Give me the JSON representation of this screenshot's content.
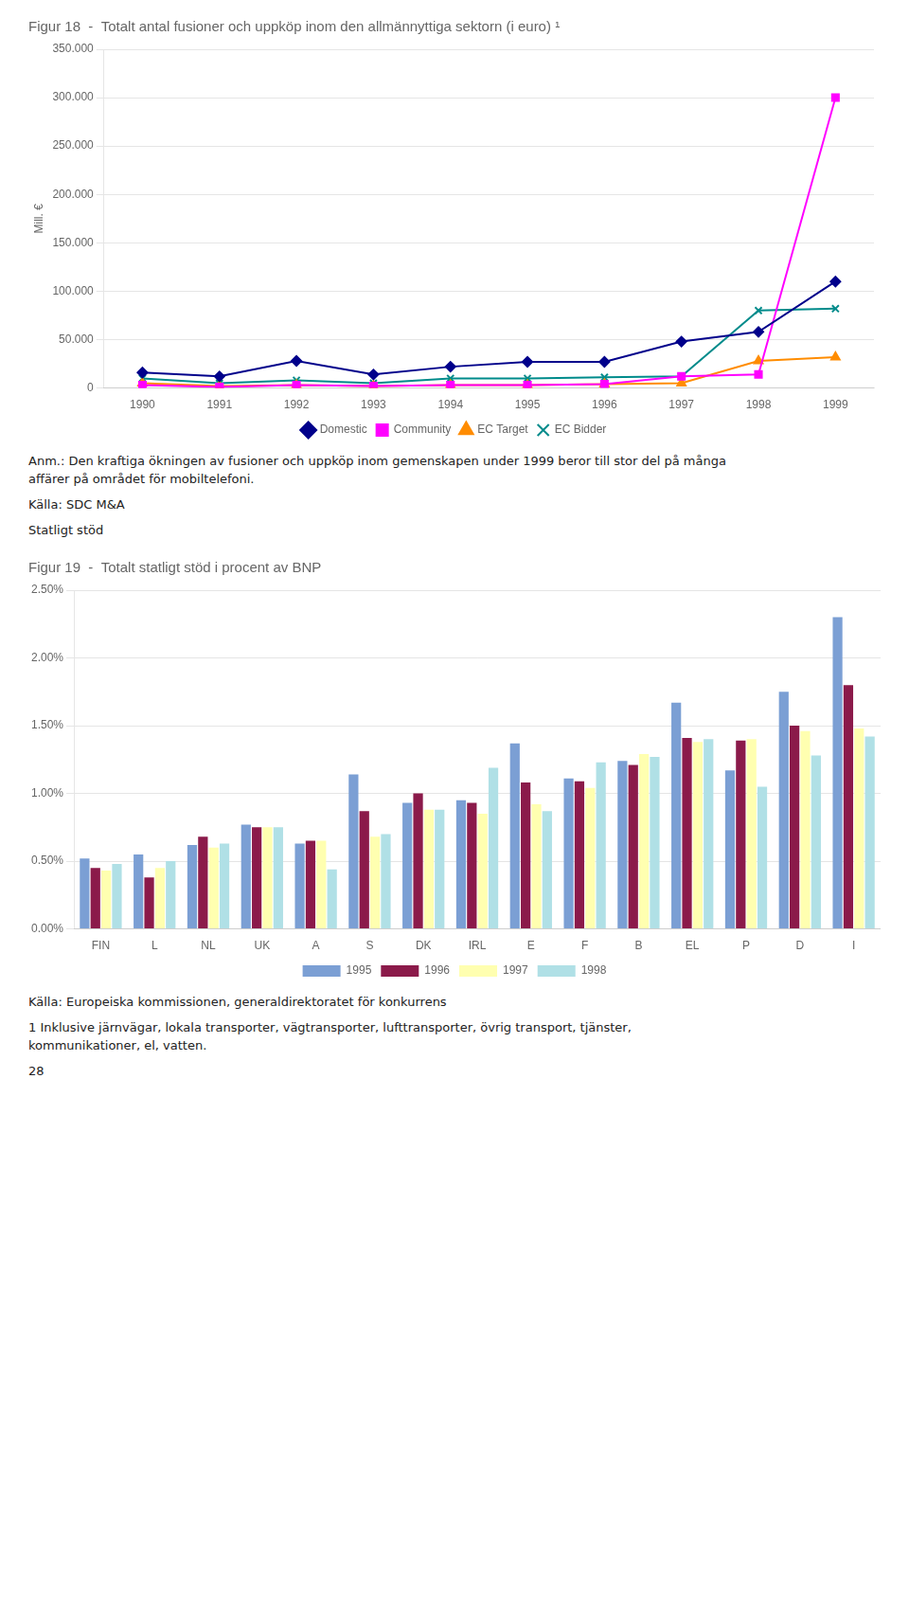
{
  "chart_data": [
    {
      "type": "line",
      "title": "Figur 18  -  Totalt antal fusioner och uppköp inom den allmännyttiga sektorn (i euro) ¹",
      "ylabel": "Mill. €",
      "x": [
        1990,
        1991,
        1992,
        1993,
        1994,
        1995,
        1996,
        1997,
        1998,
        1999
      ],
      "series": [
        {
          "name": "Domestic",
          "color": "#00008B",
          "marker": "diamond",
          "values": [
            16000,
            12000,
            28000,
            14000,
            22000,
            27000,
            27000,
            48000,
            58000,
            110000
          ]
        },
        {
          "name": "Community",
          "color": "#FF00FF",
          "marker": "square",
          "values": [
            3000,
            1000,
            3000,
            2000,
            3000,
            3000,
            4000,
            12000,
            14000,
            300000
          ]
        },
        {
          "name": "EC Target",
          "color": "#FF8C00",
          "marker": "triangle",
          "values": [
            5000,
            2000,
            3000,
            2000,
            3000,
            3000,
            4000,
            5000,
            28000,
            32000
          ]
        },
        {
          "name": "EC Bidder",
          "color": "#008B8B",
          "marker": "x",
          "values": [
            10000,
            5000,
            8000,
            5000,
            10000,
            10000,
            11000,
            12000,
            80000,
            82000
          ]
        }
      ],
      "xlim": [
        1989.5,
        1999.5
      ],
      "xticks": [
        1990,
        1991,
        1992,
        1993,
        1994,
        1995,
        1996,
        1997,
        1998,
        1999
      ],
      "ylim": [
        0,
        350000
      ],
      "yticks": [
        0,
        {
          "value": 50000,
          "label": "50.000"
        },
        {
          "value": 100000,
          "label": "100.000"
        },
        {
          "value": 150000,
          "label": "150.000"
        },
        {
          "value": 200000,
          "label": "200.000"
        },
        {
          "value": 250000,
          "label": "250.000"
        },
        {
          "value": 300000,
          "label": "300.000"
        },
        {
          "value": 350000,
          "label": "350.000"
        }
      ],
      "grid": "y",
      "legend": "bottom",
      "annotations": [
        "Anm.: Den kraftiga ökningen av fusioner och uppköp inom gemenskapen under 1999 beror till stor del på många\naffärer på området för mobiltelefoni.",
        "Källa: SDC M&A",
        "Statligt stöd"
      ]
    },
    {
      "type": "bar",
      "title": "Figur 19  -  Totalt statligt stöd i procent av BNP",
      "categories": [
        "FIN",
        "L",
        "NL",
        "UK",
        "A",
        "S",
        "DK",
        "IRL",
        "E",
        "F",
        "B",
        "EL",
        "P",
        "D",
        "I"
      ],
      "series": [
        {
          "name": "1995",
          "color": "#7b9fd4",
          "values": [
            0.52,
            0.55,
            0.62,
            0.77,
            0.63,
            1.14,
            0.93,
            0.95,
            1.37,
            1.11,
            1.24,
            1.67,
            1.17,
            1.75,
            2.3
          ]
        },
        {
          "name": "1996",
          "color": "#8b1a4a",
          "values": [
            0.45,
            0.38,
            0.68,
            0.75,
            0.65,
            0.87,
            1.0,
            0.93,
            1.08,
            1.09,
            1.21,
            1.41,
            1.39,
            1.5,
            1.8
          ]
        },
        {
          "name": "1997",
          "color": "#ffffb0",
          "values": [
            0.43,
            0.45,
            0.6,
            0.75,
            0.65,
            0.68,
            0.88,
            0.85,
            0.92,
            1.04,
            1.29,
            1.38,
            1.4,
            1.46,
            1.48
          ]
        },
        {
          "name": "1998",
          "color": "#b0e0e6",
          "values": [
            0.48,
            0.5,
            0.63,
            0.75,
            0.44,
            0.7,
            0.88,
            1.19,
            0.87,
            1.23,
            1.27,
            1.4,
            1.05,
            1.28,
            1.42
          ]
        }
      ],
      "ylim": [
        0,
        2.5
      ],
      "yticks": [
        {
          "value": 0,
          "label": "0.00%"
        },
        {
          "value": 0.5,
          "label": "0.50%"
        },
        {
          "value": 1.0,
          "label": "1.00%"
        },
        {
          "value": 1.5,
          "label": "1.50%"
        },
        {
          "value": 2.0,
          "label": "2.00%"
        },
        {
          "value": 2.5,
          "label": "2.50%"
        }
      ],
      "grid": "y",
      "legend": "bottom",
      "annotations": [
        "Källa: Europeiska kommissionen, generaldirektoratet för konkurrens",
        "1 Inklusive järnvägar, lokala transporter, vägtransporter, lufttransporter, övrig transport, tjänster,\nkommunikationer, el, vatten.",
        "28"
      ]
    }
  ]
}
